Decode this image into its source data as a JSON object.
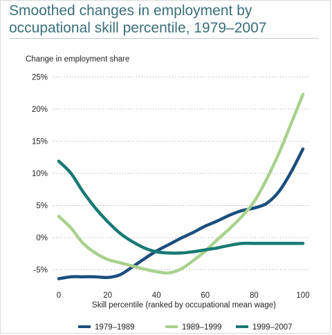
{
  "chart_data": {
    "type": "line",
    "title": "Smoothed changes in employment by occupational skill percentile, 1979–2007",
    "ylabel": "Change in employment share",
    "xlabel": "Skill percentile (ranked by occupational mean wage)",
    "xlim": [
      0,
      100
    ],
    "ylim": [
      -5,
      25
    ],
    "xticks": [
      0,
      20,
      40,
      60,
      80,
      100
    ],
    "yticks": [
      25,
      20,
      15,
      10,
      5,
      0,
      -5
    ],
    "ytick_labels": [
      "25%",
      "20%",
      "15%",
      "10%",
      "5%",
      "0%",
      "-5%"
    ],
    "grid": true,
    "legend": "bottom",
    "series": [
      {
        "name": "1979–1989",
        "color": "#1b4e7e",
        "x": [
          0,
          5,
          10,
          15,
          20,
          25,
          30,
          35,
          40,
          45,
          50,
          55,
          60,
          65,
          70,
          75,
          80,
          85,
          90,
          95,
          100
        ],
        "y": [
          -6.4,
          -6.1,
          -6.1,
          -6.1,
          -6.2,
          -5.8,
          -4.6,
          -3.3,
          -2.1,
          -1.1,
          -0.1,
          0.8,
          1.8,
          2.6,
          3.5,
          4.2,
          4.6,
          5.3,
          7.1,
          10.1,
          13.8
        ]
      },
      {
        "name": "1989–1999",
        "color": "#a9d18e",
        "x": [
          0,
          5,
          10,
          15,
          20,
          25,
          30,
          35,
          40,
          45,
          50,
          55,
          60,
          65,
          70,
          75,
          80,
          85,
          90,
          95,
          100
        ],
        "y": [
          3.3,
          1.5,
          -0.9,
          -2.4,
          -3.4,
          -3.9,
          -4.4,
          -4.9,
          -5.3,
          -5.5,
          -4.9,
          -3.6,
          -2.1,
          -0.3,
          1.4,
          3.3,
          5.6,
          9.0,
          13.0,
          17.6,
          22.3
        ]
      },
      {
        "name": "1999–2007",
        "color": "#177a74",
        "x": [
          0,
          5,
          10,
          15,
          20,
          25,
          30,
          35,
          40,
          45,
          50,
          55,
          60,
          65,
          70,
          75,
          80,
          85,
          90,
          95,
          100
        ],
        "y": [
          11.9,
          10.0,
          7.1,
          4.6,
          2.5,
          0.7,
          -0.6,
          -1.6,
          -2.2,
          -2.4,
          -2.4,
          -2.2,
          -1.9,
          -1.6,
          -1.2,
          -0.9,
          -0.9,
          -0.9,
          -0.9,
          -0.9,
          -0.9
        ]
      }
    ]
  }
}
